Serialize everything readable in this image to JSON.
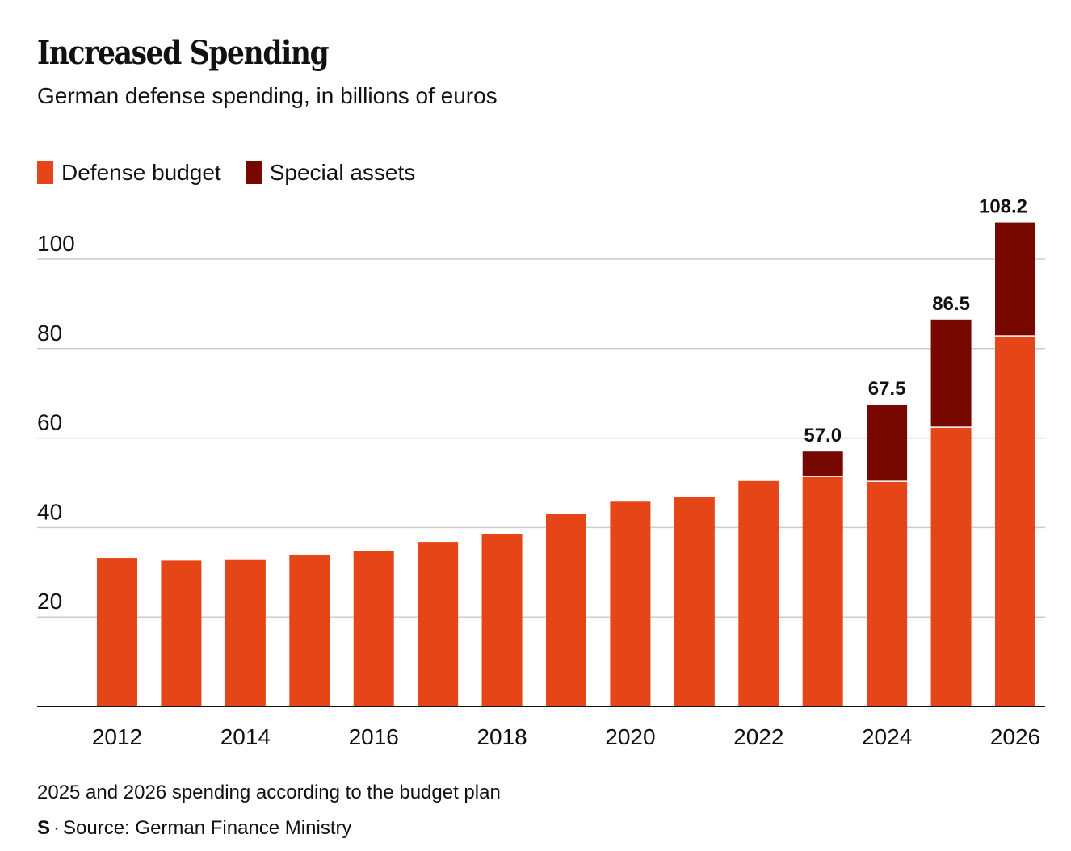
{
  "title": "Increased Spending",
  "subtitle": "German defense spending, in billions of euros",
  "note": "2025 and 2026 spending according to the budget plan",
  "source": "Source: German Finance Ministry",
  "logo": "S",
  "colors": {
    "defense": "#E64517",
    "special": "#760800",
    "grid": "#cccccc"
  },
  "chart_data": {
    "type": "bar",
    "stacked": true,
    "title": "Increased Spending",
    "subtitle": "German defense spending, in billions of euros",
    "xlabel": "",
    "ylabel": "",
    "ylim": [
      0,
      110
    ],
    "yticks": [
      20,
      40,
      60,
      80,
      100
    ],
    "grid": true,
    "legend_position": "top-left",
    "categories": [
      2012,
      2013,
      2014,
      2015,
      2016,
      2017,
      2018,
      2019,
      2020,
      2021,
      2022,
      2023,
      2024,
      2025,
      2026
    ],
    "xtick_labels": [
      "2012",
      "2014",
      "2016",
      "2018",
      "2020",
      "2022",
      "2024",
      "2026"
    ],
    "series": [
      {
        "name": "Defense budget",
        "values": [
          33.2,
          32.6,
          32.9,
          33.8,
          34.8,
          36.8,
          38.6,
          43.0,
          45.8,
          46.9,
          50.4,
          51.3,
          50.2,
          62.3,
          82.7
        ]
      },
      {
        "name": "Special assets",
        "values": [
          0,
          0,
          0,
          0,
          0,
          0,
          0,
          0,
          0,
          0,
          0,
          5.7,
          17.3,
          24.2,
          25.5
        ]
      }
    ],
    "total_labels": [
      {
        "year": 2023,
        "label": "57.0"
      },
      {
        "year": 2024,
        "label": "67.5"
      },
      {
        "year": 2025,
        "label": "86.5"
      },
      {
        "year": 2026,
        "label": "108.2"
      }
    ]
  }
}
